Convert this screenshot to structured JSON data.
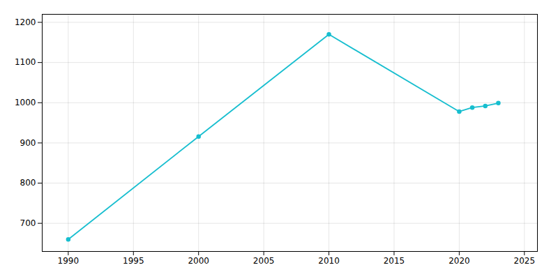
{
  "chart_data": {
    "type": "line",
    "x": [
      1990,
      2000,
      2010,
      2020,
      2021,
      2022,
      2023
    ],
    "values": [
      660,
      916,
      1170,
      978,
      988,
      992,
      999
    ],
    "color": "#17BECF",
    "marker": "circle",
    "xlim": [
      1988,
      2026
    ],
    "ylim": [
      630,
      1220
    ],
    "xticks": [
      1990,
      1995,
      2000,
      2005,
      2010,
      2015,
      2020,
      2025
    ],
    "yticks": [
      700,
      800,
      900,
      1000,
      1100,
      1200
    ],
    "grid": true
  }
}
